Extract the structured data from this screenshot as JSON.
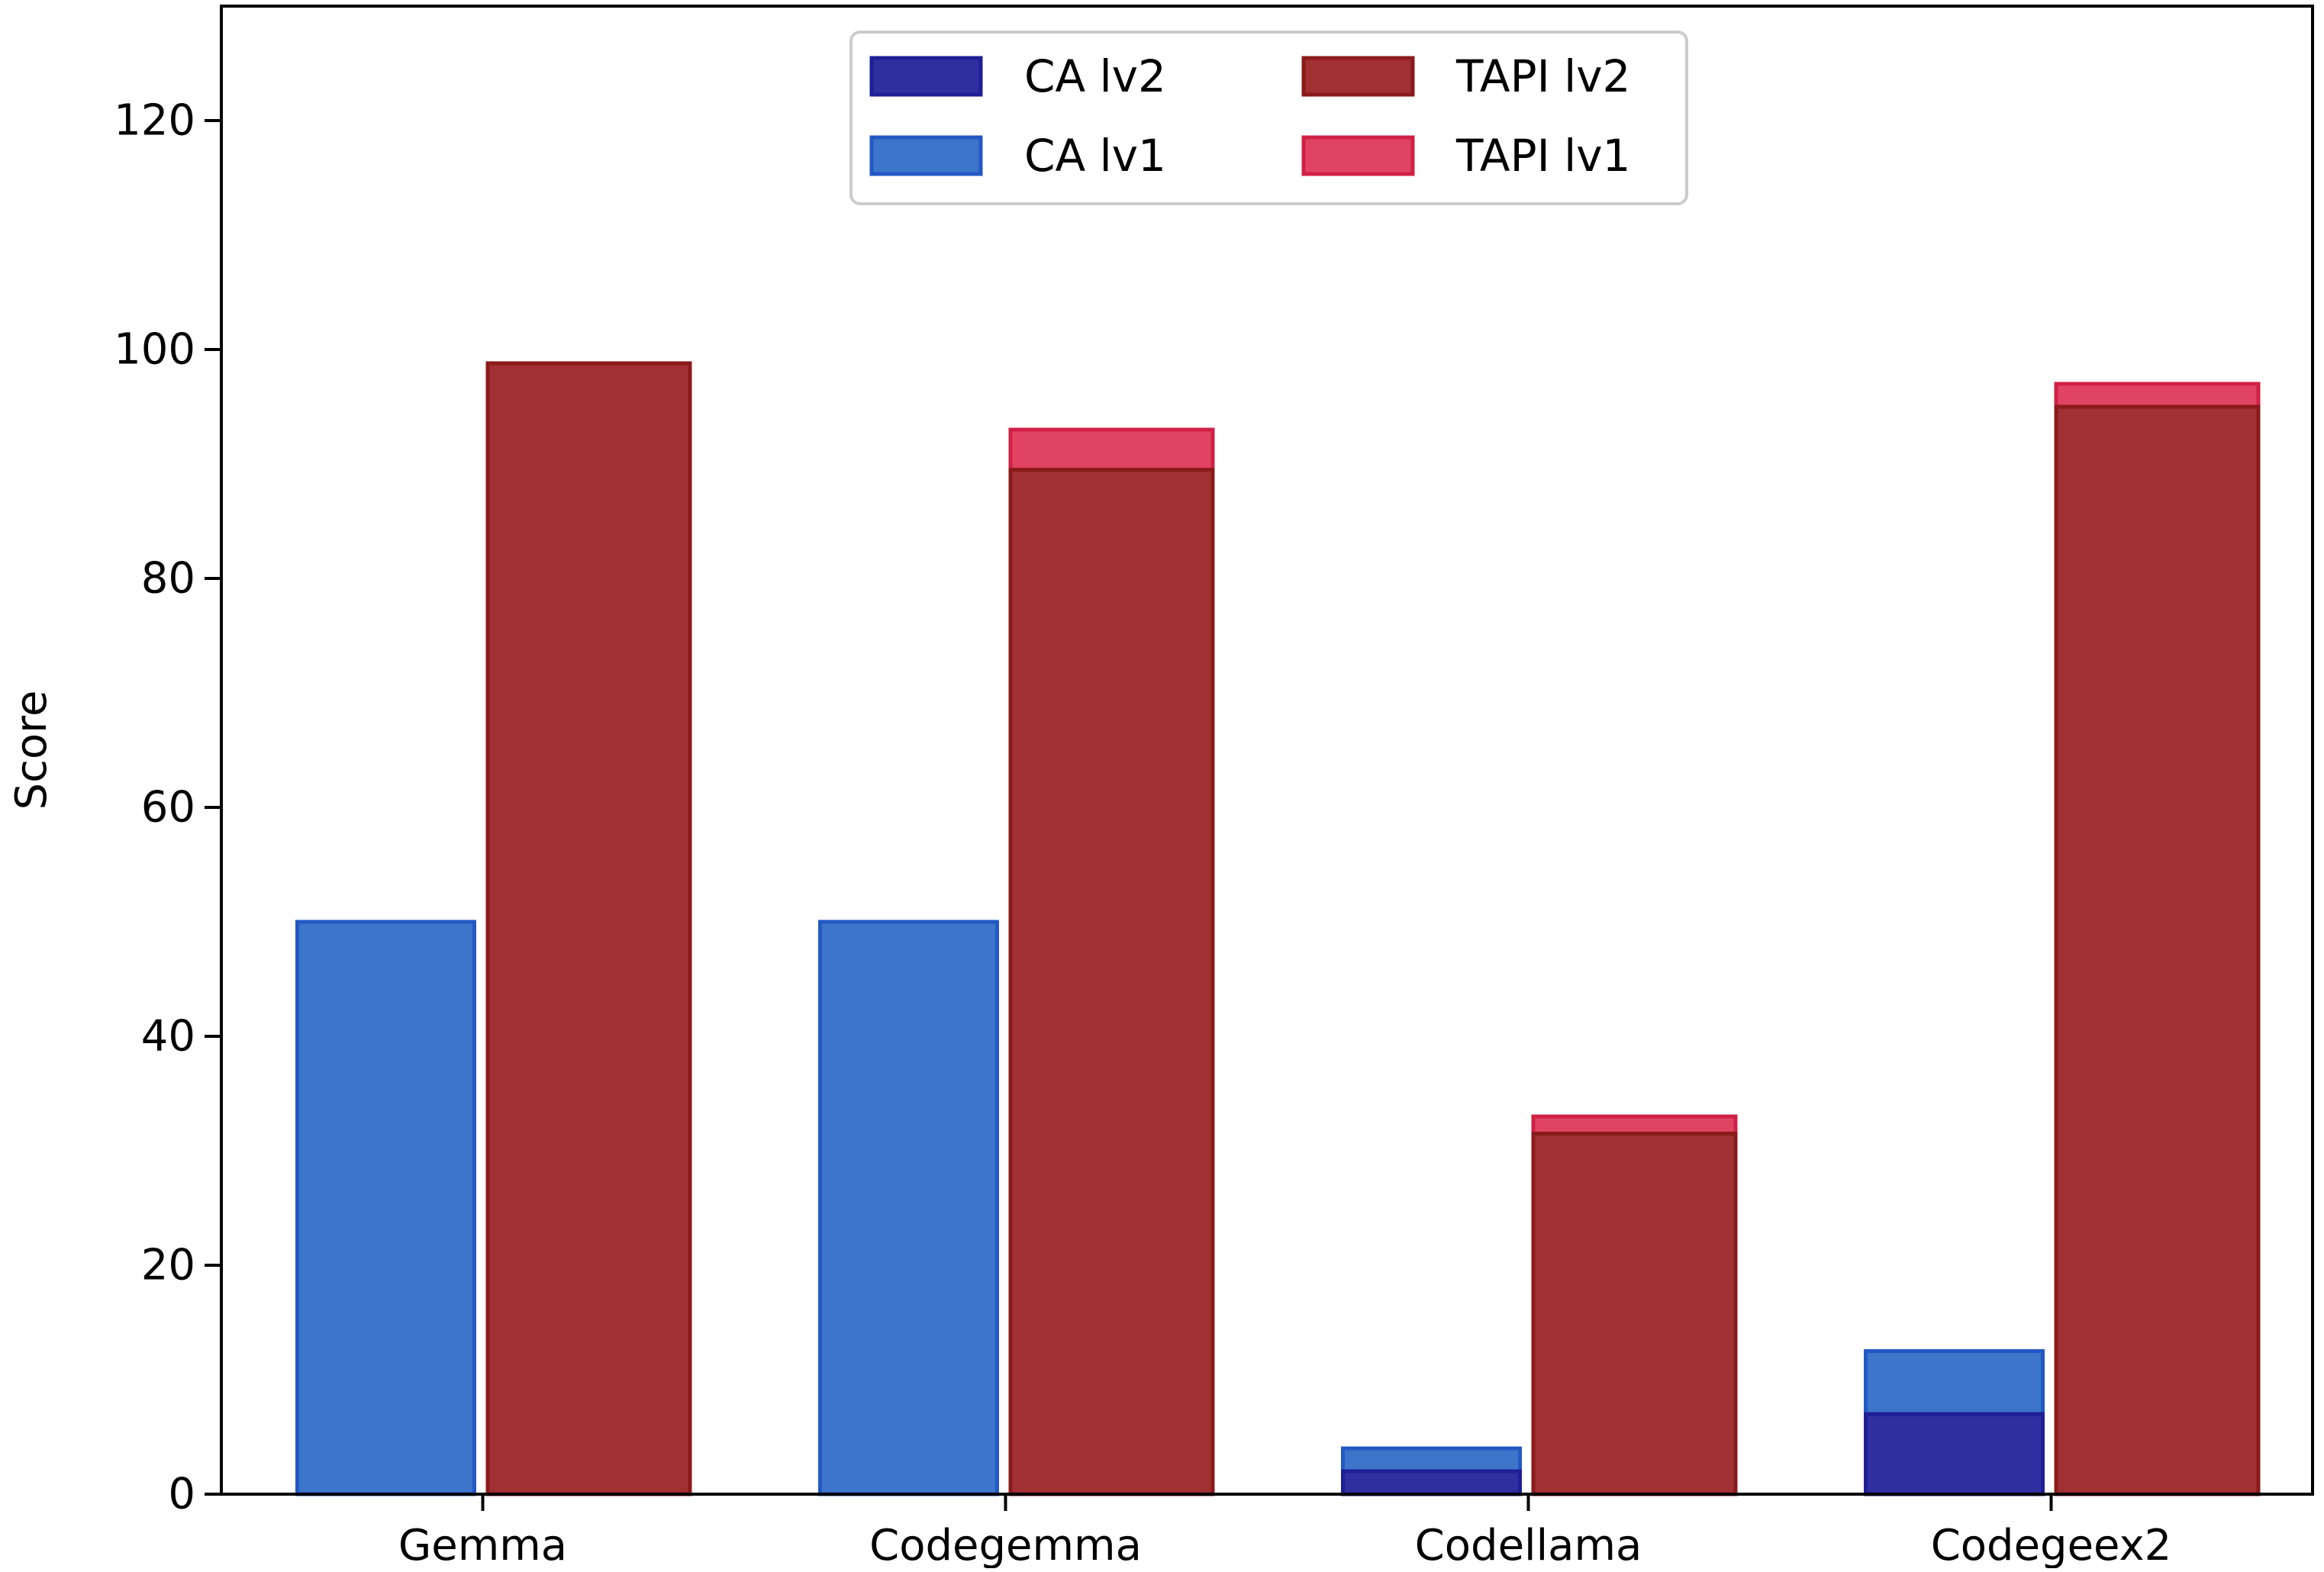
{
  "chart_data": {
    "type": "bar",
    "title": "",
    "xlabel": "",
    "ylabel": "Score",
    "ylim": [
      0,
      130
    ],
    "yticks": [
      0,
      20,
      40,
      60,
      80,
      100,
      120
    ],
    "categories": [
      "Gemma",
      "Codegemma",
      "Codellama",
      "Codegeex2"
    ],
    "grid": false,
    "legend_position": "top-center",
    "series": [
      {
        "name": "CA lv1",
        "group": "CA",
        "values": [
          50,
          50,
          4,
          12.5
        ],
        "fill": "#3c75c9",
        "stroke": "#2358c4"
      },
      {
        "name": "CA lv2",
        "group": "CA",
        "values": [
          0,
          0,
          2,
          7
        ],
        "fill": "#2f2f9f",
        "stroke": "#1e1e96"
      },
      {
        "name": "TAPI lv1",
        "group": "TAPI",
        "values": [
          98.8,
          93,
          33,
          97
        ],
        "fill": "#e04462",
        "stroke": "#d02045"
      },
      {
        "name": "TAPI lv2",
        "group": "TAPI",
        "values": [
          98.8,
          89.5,
          31.5,
          95
        ],
        "fill": "#a03032",
        "stroke": "#8b1a1a"
      }
    ],
    "legend": [
      {
        "label": "CA lv2",
        "fill": "#2f2f9f",
        "stroke": "#1e1e96"
      },
      {
        "label": "TAPI lv2",
        "fill": "#a03032",
        "stroke": "#8b1a1a"
      },
      {
        "label": "CA lv1",
        "fill": "#3c75c9",
        "stroke": "#2358c4"
      },
      {
        "label": "TAPI lv1",
        "fill": "#e04462",
        "stroke": "#d02045"
      }
    ]
  }
}
